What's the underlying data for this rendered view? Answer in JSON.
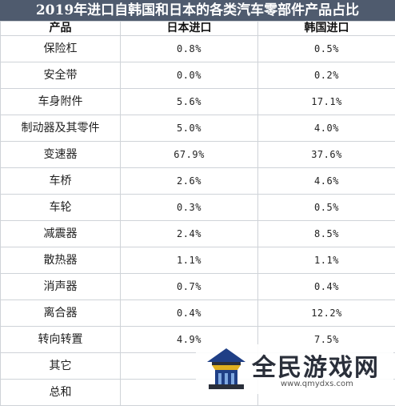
{
  "title": "2019年进口自韩国和日本的各类汽车零部件产品占比",
  "table": {
    "headers": [
      "产品",
      "日本进口",
      "韩国进口"
    ],
    "rows": [
      {
        "product": "保险杠",
        "japan": "0.8%",
        "korea": "0.5%"
      },
      {
        "product": "安全带",
        "japan": "0.0%",
        "korea": "0.2%"
      },
      {
        "product": "车身附件",
        "japan": "5.6%",
        "korea": "17.1%"
      },
      {
        "product": "制动器及其零件",
        "japan": "5.0%",
        "korea": "4.0%"
      },
      {
        "product": "变速器",
        "japan": "67.9%",
        "korea": "37.6%"
      },
      {
        "product": "车桥",
        "japan": "2.6%",
        "korea": "4.6%"
      },
      {
        "product": "车轮",
        "japan": "0.3%",
        "korea": "0.5%"
      },
      {
        "product": "减震器",
        "japan": "2.4%",
        "korea": "8.5%"
      },
      {
        "product": "散热器",
        "japan": "1.1%",
        "korea": "1.1%"
      },
      {
        "product": "消声器",
        "japan": "0.7%",
        "korea": "0.4%"
      },
      {
        "product": "离合器",
        "japan": "0.4%",
        "korea": "12.2%"
      },
      {
        "product": "转向转置",
        "japan": "4.9%",
        "korea": "7.5%"
      },
      {
        "product": "其它",
        "japan": "",
        "korea": ""
      },
      {
        "product": "总和",
        "japan": "",
        "korea": ""
      }
    ]
  },
  "watermark": {
    "title": "全民游戏网",
    "url": "www.qmydxs.com"
  },
  "colors": {
    "title_bar": "#4f5b6e",
    "grid": "#cfd3d8"
  }
}
